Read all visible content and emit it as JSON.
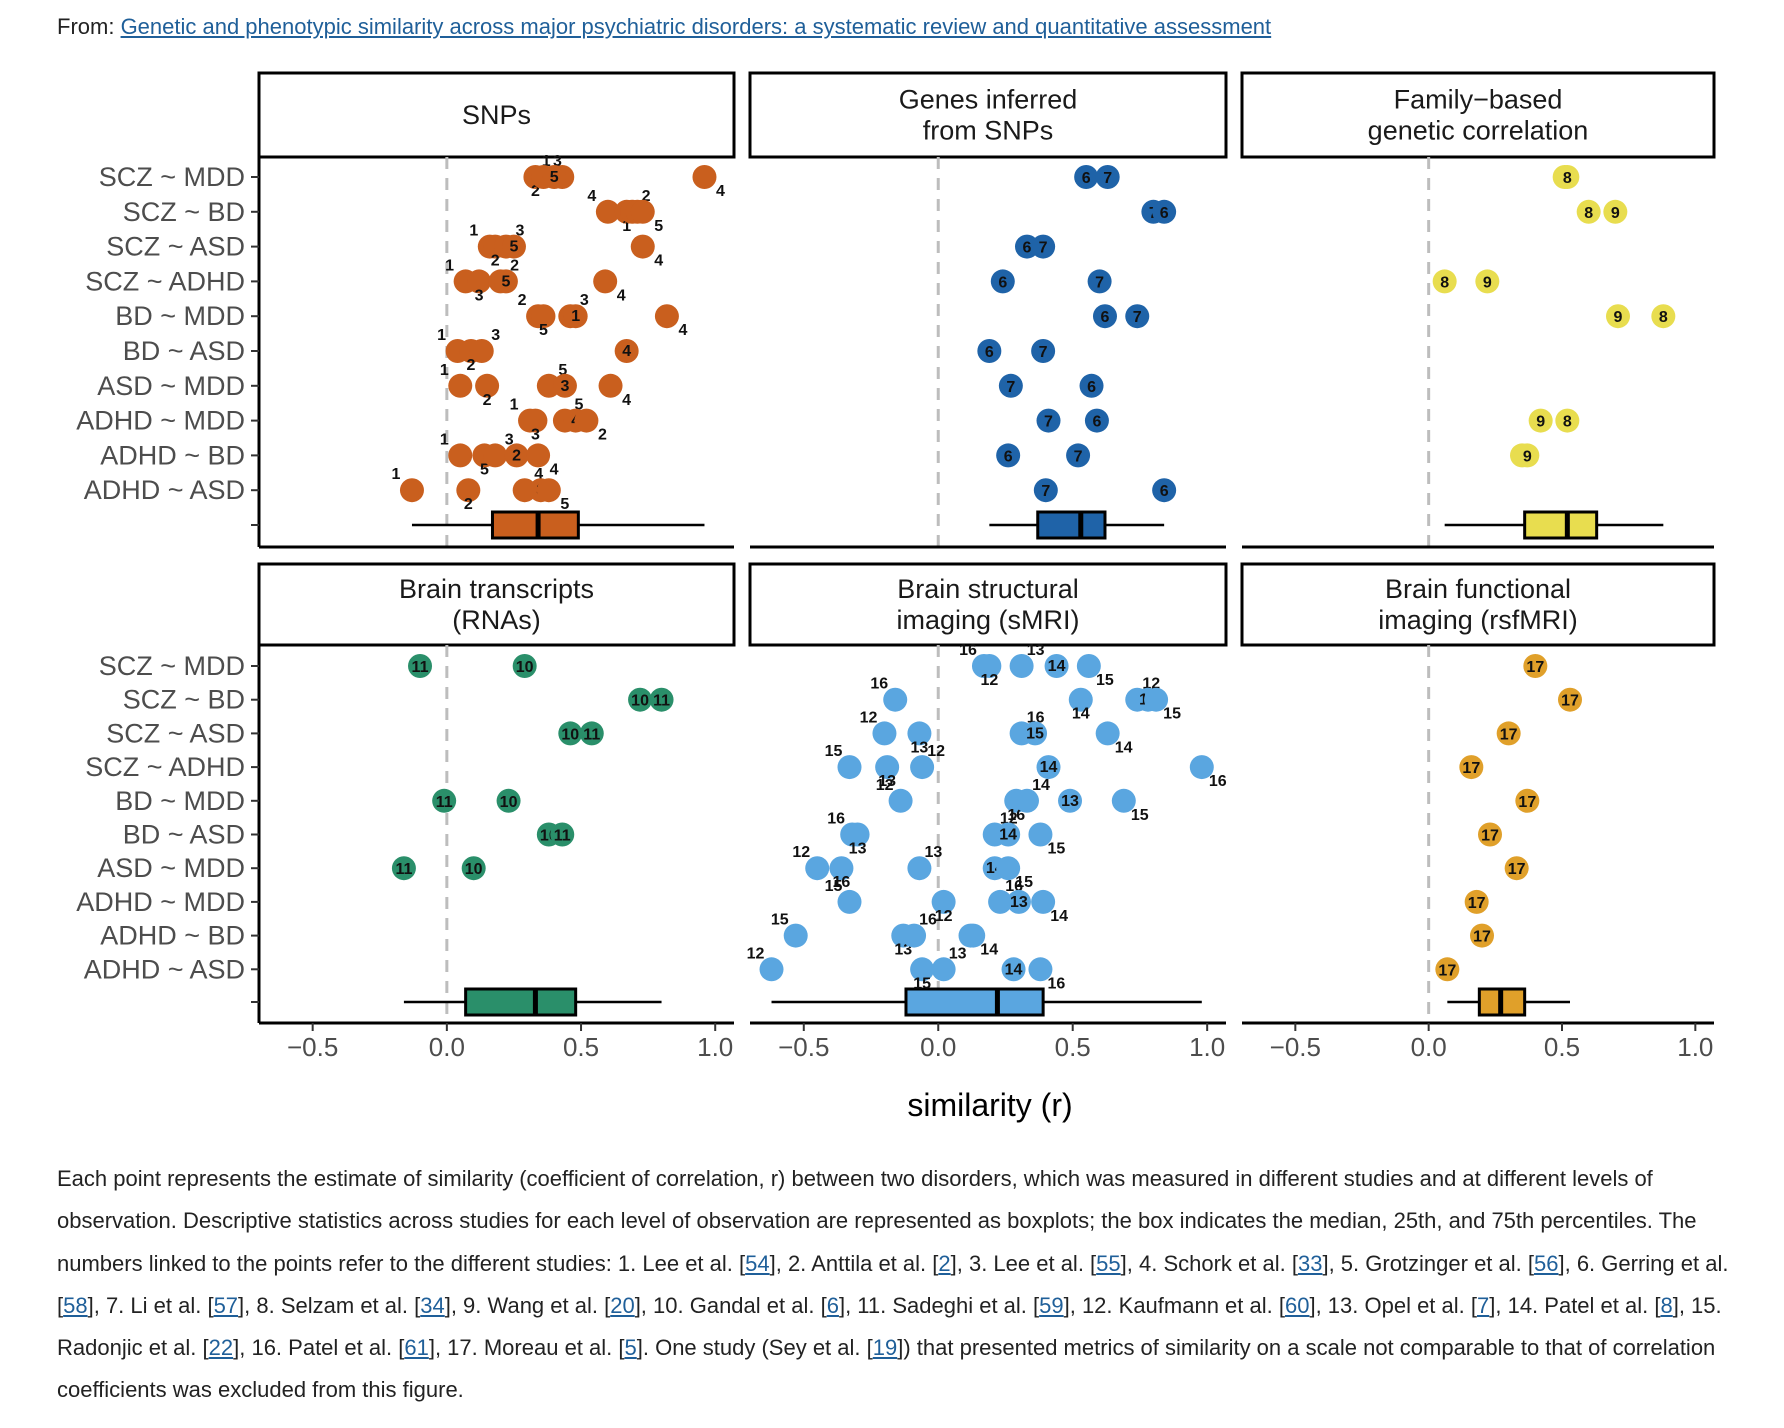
{
  "header": {
    "prefix": "From: ",
    "article_link": "Genetic and phenotypic similarity across major psychiatric disorders: a systematic review and quantitative assessment"
  },
  "chart_data": {
    "type": "scatter",
    "subtype": "faceted dot plot with boxplots",
    "xlabel": "similarity (r)",
    "xlim": [
      -0.7,
      1.07
    ],
    "xticks": [
      -0.5,
      0.0,
      0.5,
      1.0
    ],
    "xtick_labels": [
      "−0.5",
      "0.0",
      "0.5",
      "1.0"
    ],
    "reference_line": 0,
    "categories": [
      "SCZ ~ MDD",
      "SCZ ~ BD",
      "SCZ ~ ASD",
      "SCZ ~ ADHD",
      "BD ~ MDD",
      "BD ~ ASD",
      "ASD ~ MDD",
      "ADHD ~ MDD",
      "ADHD ~ BD",
      "ADHD ~ ASD"
    ],
    "panels": [
      {
        "title": "SNPs",
        "color": "#c95f1e",
        "points": [
          {
            "row": 0,
            "study": "1",
            "r": 0.43
          },
          {
            "row": 0,
            "study": "2",
            "r": 0.33
          },
          {
            "row": 0,
            "study": "3",
            "r": 0.36
          },
          {
            "row": 0,
            "study": "5",
            "r": 0.4
          },
          {
            "row": 0,
            "study": "4",
            "r": 0.96
          },
          {
            "row": 1,
            "study": "4",
            "r": 0.6
          },
          {
            "row": 1,
            "study": "1",
            "r": 0.67
          },
          {
            "row": 1,
            "study": "2",
            "r": 0.69
          },
          {
            "row": 1,
            "study": "3",
            "r": 0.71
          },
          {
            "row": 1,
            "study": "5",
            "r": 0.73
          },
          {
            "row": 2,
            "study": "1",
            "r": 0.16
          },
          {
            "row": 2,
            "study": "2",
            "r": 0.18
          },
          {
            "row": 2,
            "study": "3",
            "r": 0.22
          },
          {
            "row": 2,
            "study": "5",
            "r": 0.25
          },
          {
            "row": 2,
            "study": "4",
            "r": 0.73
          },
          {
            "row": 3,
            "study": "1",
            "r": 0.07
          },
          {
            "row": 3,
            "study": "3",
            "r": 0.12
          },
          {
            "row": 3,
            "study": "2",
            "r": 0.2
          },
          {
            "row": 3,
            "study": "5",
            "r": 0.22
          },
          {
            "row": 3,
            "study": "4",
            "r": 0.59
          },
          {
            "row": 4,
            "study": "2",
            "r": 0.34
          },
          {
            "row": 4,
            "study": "5",
            "r": 0.36
          },
          {
            "row": 4,
            "study": "3",
            "r": 0.46
          },
          {
            "row": 4,
            "study": "1",
            "r": 0.48
          },
          {
            "row": 4,
            "study": "4",
            "r": 0.82
          },
          {
            "row": 5,
            "study": "1",
            "r": 0.04
          },
          {
            "row": 5,
            "study": "2",
            "r": 0.09
          },
          {
            "row": 5,
            "study": "3",
            "r": 0.13
          },
          {
            "row": 5,
            "study": "4",
            "r": 0.67
          },
          {
            "row": 6,
            "study": "1",
            "r": 0.05
          },
          {
            "row": 6,
            "study": "2",
            "r": 0.15
          },
          {
            "row": 6,
            "study": "5",
            "r": 0.38
          },
          {
            "row": 6,
            "study": "3",
            "r": 0.44
          },
          {
            "row": 6,
            "study": "4",
            "r": 0.61
          },
          {
            "row": 7,
            "study": "1",
            "r": 0.31
          },
          {
            "row": 7,
            "study": "3",
            "r": 0.33
          },
          {
            "row": 7,
            "study": "5",
            "r": 0.44
          },
          {
            "row": 7,
            "study": "4",
            "r": 0.48
          },
          {
            "row": 7,
            "study": "2",
            "r": 0.52
          },
          {
            "row": 8,
            "study": "1",
            "r": 0.05
          },
          {
            "row": 8,
            "study": "5",
            "r": 0.14
          },
          {
            "row": 8,
            "study": "3",
            "r": 0.18
          },
          {
            "row": 8,
            "study": "2",
            "r": 0.26
          },
          {
            "row": 8,
            "study": "4",
            "r": 0.34
          },
          {
            "row": 9,
            "study": "1",
            "r": -0.13
          },
          {
            "row": 9,
            "study": "2",
            "r": 0.08
          },
          {
            "row": 9,
            "study": "4",
            "r": 0.29
          },
          {
            "row": 9,
            "study": "3",
            "r": 0.35
          },
          {
            "row": 9,
            "study": "5",
            "r": 0.38
          }
        ],
        "box": {
          "min": -0.13,
          "q1": 0.17,
          "median": 0.34,
          "q3": 0.49,
          "max": 0.96
        }
      },
      {
        "title": "Genes inferred\nfrom SNPs",
        "color": "#1f63a8",
        "points": [
          {
            "row": 0,
            "study": "6",
            "r": 0.55
          },
          {
            "row": 0,
            "study": "7",
            "r": 0.63
          },
          {
            "row": 1,
            "study": "7",
            "r": 0.8
          },
          {
            "row": 1,
            "study": "6",
            "r": 0.84
          },
          {
            "row": 2,
            "study": "6",
            "r": 0.33
          },
          {
            "row": 2,
            "study": "7",
            "r": 0.39
          },
          {
            "row": 3,
            "study": "6",
            "r": 0.24
          },
          {
            "row": 3,
            "study": "7",
            "r": 0.6
          },
          {
            "row": 4,
            "study": "6",
            "r": 0.62
          },
          {
            "row": 4,
            "study": "7",
            "r": 0.74
          },
          {
            "row": 5,
            "study": "6",
            "r": 0.19
          },
          {
            "row": 5,
            "study": "7",
            "r": 0.39
          },
          {
            "row": 6,
            "study": "7",
            "r": 0.27
          },
          {
            "row": 6,
            "study": "6",
            "r": 0.57
          },
          {
            "row": 7,
            "study": "7",
            "r": 0.41
          },
          {
            "row": 7,
            "study": "6",
            "r": 0.59
          },
          {
            "row": 8,
            "study": "6",
            "r": 0.26
          },
          {
            "row": 8,
            "study": "7",
            "r": 0.52
          },
          {
            "row": 9,
            "study": "7",
            "r": 0.4
          },
          {
            "row": 9,
            "study": "6",
            "r": 0.84
          }
        ],
        "box": {
          "min": 0.19,
          "q1": 0.37,
          "median": 0.53,
          "q3": 0.62,
          "max": 0.84
        }
      },
      {
        "title": "Family−based\ngenetic correlation",
        "color": "#e8dd4f",
        "points": [
          {
            "row": 0,
            "study": "9",
            "r": 0.51
          },
          {
            "row": 0,
            "study": "8",
            "r": 0.52
          },
          {
            "row": 1,
            "study": "8",
            "r": 0.6
          },
          {
            "row": 1,
            "study": "9",
            "r": 0.7
          },
          {
            "row": 3,
            "study": "8",
            "r": 0.06
          },
          {
            "row": 3,
            "study": "9",
            "r": 0.22
          },
          {
            "row": 4,
            "study": "9",
            "r": 0.71
          },
          {
            "row": 4,
            "study": "8",
            "r": 0.88
          },
          {
            "row": 7,
            "study": "9",
            "r": 0.42
          },
          {
            "row": 7,
            "study": "8",
            "r": 0.52
          },
          {
            "row": 8,
            "study": "8",
            "r": 0.35
          },
          {
            "row": 8,
            "study": "9",
            "r": 0.37
          }
        ],
        "box": {
          "min": 0.06,
          "q1": 0.36,
          "median": 0.52,
          "q3": 0.63,
          "max": 0.88
        }
      },
      {
        "title": "Brain transcripts\n(RNAs)",
        "color": "#2a8f6a",
        "points": [
          {
            "row": 0,
            "study": "11",
            "r": -0.1
          },
          {
            "row": 0,
            "study": "10",
            "r": 0.29
          },
          {
            "row": 1,
            "study": "10",
            "r": 0.72
          },
          {
            "row": 1,
            "study": "11",
            "r": 0.8
          },
          {
            "row": 2,
            "study": "10",
            "r": 0.46
          },
          {
            "row": 2,
            "study": "11",
            "r": 0.54
          },
          {
            "row": 4,
            "study": "11",
            "r": -0.01
          },
          {
            "row": 4,
            "study": "10",
            "r": 0.23
          },
          {
            "row": 5,
            "study": "10",
            "r": 0.38
          },
          {
            "row": 5,
            "study": "11",
            "r": 0.43
          },
          {
            "row": 6,
            "study": "11",
            "r": -0.16
          },
          {
            "row": 6,
            "study": "10",
            "r": 0.1
          }
        ],
        "box": {
          "min": -0.16,
          "q1": 0.07,
          "median": 0.33,
          "q3": 0.48,
          "max": 0.8
        }
      },
      {
        "title": "Brain structural\nimaging (sMRI)",
        "color": "#5aa6e0",
        "points": [
          {
            "row": 0,
            "study": "16",
            "r": 0.17
          },
          {
            "row": 0,
            "study": "12",
            "r": 0.19
          },
          {
            "row": 0,
            "study": "13",
            "r": 0.31
          },
          {
            "row": 0,
            "study": "14",
            "r": 0.44
          },
          {
            "row": 0,
            "study": "15",
            "r": 0.56
          },
          {
            "row": 1,
            "study": "16",
            "r": -0.16
          },
          {
            "row": 1,
            "study": "14",
            "r": 0.53
          },
          {
            "row": 1,
            "study": "12",
            "r": 0.74
          },
          {
            "row": 1,
            "study": "13",
            "r": 0.78
          },
          {
            "row": 1,
            "study": "15",
            "r": 0.81
          },
          {
            "row": 2,
            "study": "12",
            "r": -0.2
          },
          {
            "row": 2,
            "study": "13",
            "r": -0.07
          },
          {
            "row": 2,
            "study": "16",
            "r": 0.31
          },
          {
            "row": 2,
            "study": "15",
            "r": 0.36
          },
          {
            "row": 2,
            "study": "14",
            "r": 0.63
          },
          {
            "row": 3,
            "study": "15",
            "r": -0.33
          },
          {
            "row": 3,
            "study": "13",
            "r": -0.19
          },
          {
            "row": 3,
            "study": "12",
            "r": -0.06
          },
          {
            "row": 3,
            "study": "14",
            "r": 0.41
          },
          {
            "row": 3,
            "study": "16",
            "r": 0.98
          },
          {
            "row": 4,
            "study": "12",
            "r": -0.14
          },
          {
            "row": 4,
            "study": "16",
            "r": 0.29
          },
          {
            "row": 4,
            "study": "14",
            "r": 0.33
          },
          {
            "row": 4,
            "study": "13",
            "r": 0.49
          },
          {
            "row": 4,
            "study": "15",
            "r": 0.69
          },
          {
            "row": 5,
            "study": "16",
            "r": -0.32
          },
          {
            "row": 5,
            "study": "13",
            "r": -0.3
          },
          {
            "row": 5,
            "study": "12",
            "r": 0.21
          },
          {
            "row": 5,
            "study": "14",
            "r": 0.26
          },
          {
            "row": 5,
            "study": "15",
            "r": 0.38
          },
          {
            "row": 6,
            "study": "12",
            "r": -0.45
          },
          {
            "row": 6,
            "study": "16",
            "r": -0.36
          },
          {
            "row": 6,
            "study": "13",
            "r": -0.07
          },
          {
            "row": 6,
            "study": "14",
            "r": 0.21
          },
          {
            "row": 6,
            "study": "15",
            "r": 0.26
          },
          {
            "row": 7,
            "study": "15",
            "r": -0.33
          },
          {
            "row": 7,
            "study": "12",
            "r": 0.02
          },
          {
            "row": 7,
            "study": "16",
            "r": 0.23
          },
          {
            "row": 7,
            "study": "13",
            "r": 0.3
          },
          {
            "row": 7,
            "study": "14",
            "r": 0.39
          },
          {
            "row": 8,
            "study": "15",
            "r": -0.53
          },
          {
            "row": 8,
            "study": "13",
            "r": -0.13
          },
          {
            "row": 8,
            "study": "16",
            "r": -0.09
          },
          {
            "row": 8,
            "study": "12",
            "r": 0.12
          },
          {
            "row": 8,
            "study": "14",
            "r": 0.13
          },
          {
            "row": 9,
            "study": "12",
            "r": -0.62
          },
          {
            "row": 9,
            "study": "15",
            "r": -0.06
          },
          {
            "row": 9,
            "study": "13",
            "r": 0.02
          },
          {
            "row": 9,
            "study": "14",
            "r": 0.28
          },
          {
            "row": 9,
            "study": "16",
            "r": 0.38
          }
        ],
        "box": {
          "min": -0.62,
          "q1": -0.12,
          "median": 0.22,
          "q3": 0.39,
          "max": 0.98
        }
      },
      {
        "title": "Brain functional\nimaging (rsfMRI)",
        "color": "#e0a02a",
        "points": [
          {
            "row": 0,
            "study": "17",
            "r": 0.4
          },
          {
            "row": 1,
            "study": "17",
            "r": 0.53
          },
          {
            "row": 2,
            "study": "17",
            "r": 0.3
          },
          {
            "row": 3,
            "study": "17",
            "r": 0.16
          },
          {
            "row": 4,
            "study": "17",
            "r": 0.37
          },
          {
            "row": 5,
            "study": "17",
            "r": 0.23
          },
          {
            "row": 6,
            "study": "17",
            "r": 0.33
          },
          {
            "row": 7,
            "study": "17",
            "r": 0.18
          },
          {
            "row": 8,
            "study": "17",
            "r": 0.2
          },
          {
            "row": 9,
            "study": "17",
            "r": 0.07
          }
        ],
        "box": {
          "min": 0.07,
          "q1": 0.19,
          "median": 0.27,
          "q3": 0.36,
          "max": 0.53
        }
      }
    ]
  },
  "caption": {
    "parts": [
      {
        "t": "Each point represents the estimate of similarity (coefficient of correlation, r) between two disorders, which was measured in different studies and at different levels of observation. Descriptive statistics across studies for each level of observation are represented as boxplots; the box indicates the median, 25th, and 75th percentiles. The numbers linked to the points refer to the different studies: 1. Lee et al. ["
      },
      {
        "link": "54"
      },
      {
        "t": "], 2. Anttila et al. ["
      },
      {
        "link": "2"
      },
      {
        "t": "], 3. Lee et al. ["
      },
      {
        "link": "55"
      },
      {
        "t": "], 4. Schork et al. ["
      },
      {
        "link": "33"
      },
      {
        "t": "], 5. Grotzinger et al. ["
      },
      {
        "link": "56"
      },
      {
        "t": "], 6. Gerring et al. ["
      },
      {
        "link": "58"
      },
      {
        "t": "], 7. Li et al. ["
      },
      {
        "link": "57"
      },
      {
        "t": "], 8. Selzam et al. ["
      },
      {
        "link": "34"
      },
      {
        "t": "], 9. Wang et al. ["
      },
      {
        "link": "20"
      },
      {
        "t": "], 10. Gandal et al. ["
      },
      {
        "link": "6"
      },
      {
        "t": "], 11. Sadeghi et al. ["
      },
      {
        "link": "59"
      },
      {
        "t": "], 12. Kaufmann et al. ["
      },
      {
        "link": "60"
      },
      {
        "t": "], 13. Opel et al. ["
      },
      {
        "link": "7"
      },
      {
        "t": "], 14. Patel et al. ["
      },
      {
        "link": "8"
      },
      {
        "t": "], 15. Radonjic et al. ["
      },
      {
        "link": "22"
      },
      {
        "t": "], 16. Patel et al. ["
      },
      {
        "link": "61"
      },
      {
        "t": "], 17. Moreau et al. ["
      },
      {
        "link": "5"
      },
      {
        "t": "]. One study (Sey et al. ["
      },
      {
        "link": "19"
      },
      {
        "t": "]) that presented metrics of similarity on a scale not comparable to that of correlation coefficients was excluded from this figure."
      }
    ]
  }
}
